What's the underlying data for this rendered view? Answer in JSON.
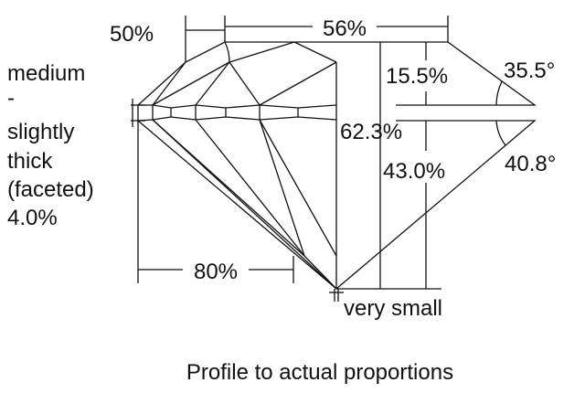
{
  "labels": {
    "crown_height_ratio": "50%",
    "table": "56%",
    "crown_height": "15.5%",
    "crown_angle": "35.5°",
    "total_depth": "62.3%",
    "pavilion_depth": "43.0%",
    "pavilion_angle": "40.8°",
    "lower_half": "80%",
    "culet": "very small",
    "girdle": [
      "medium",
      "-",
      "slightly",
      "thick",
      "(faceted)",
      "4.0%"
    ]
  },
  "caption": "Profile to actual proportions"
}
